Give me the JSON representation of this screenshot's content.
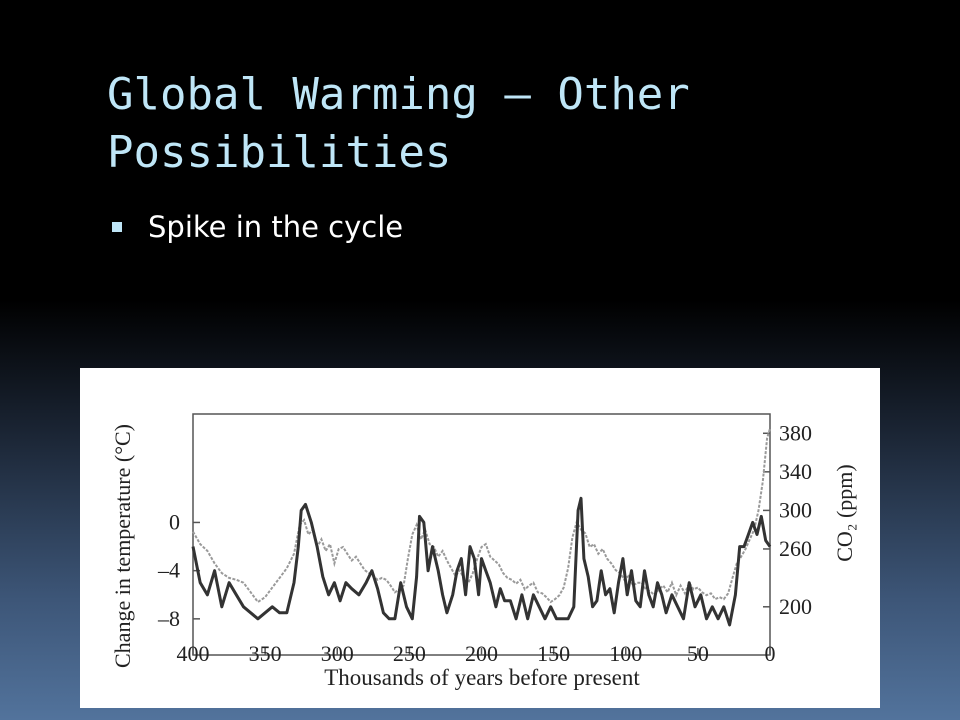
{
  "slide": {
    "title": "Global Warming – Other Possibilities",
    "bullets": [
      "Spike in the cycle"
    ],
    "accent_color": "#bfe6f7"
  },
  "chart_data": {
    "type": "line",
    "xlabel": "Thousands of years before present",
    "ylabel_left": "Change in temperature (°C)",
    "ylabel_right": "CO₂ (ppm)",
    "x_ticks": [
      "400",
      "350",
      "300",
      "250",
      "200",
      "150",
      "100",
      "50",
      "0"
    ],
    "y_left_ticks": [
      "0",
      "–4",
      "–8"
    ],
    "y_right_ticks": [
      "380",
      "340",
      "300",
      "260",
      "200"
    ],
    "xlim": [
      400,
      0
    ],
    "ylim_left": [
      -11,
      9
    ],
    "ylim_right": [
      150,
      400
    ],
    "series": [
      {
        "color": "#333333",
        "x": [
          400,
          395,
          390,
          385,
          380,
          375,
          370,
          365,
          360,
          355,
          350,
          345,
          340,
          335,
          330,
          327,
          325,
          322,
          318,
          314,
          310,
          306,
          302,
          298,
          294,
          290,
          285,
          280,
          276,
          272,
          268,
          264,
          260,
          256,
          252,
          248,
          245,
          243,
          240,
          237,
          234,
          230,
          227,
          224,
          220,
          217,
          214,
          211,
          208,
          205,
          202,
          200,
          197,
          194,
          190,
          187,
          184,
          180,
          176,
          172,
          168,
          164,
          160,
          156,
          152,
          148,
          144,
          140,
          136,
          133,
          131,
          129,
          126,
          123,
          120,
          117,
          114,
          111,
          108,
          105,
          102,
          99,
          96,
          93,
          90,
          87,
          84,
          81,
          78,
          75,
          72,
          68,
          64,
          60,
          56,
          52,
          48,
          44,
          40,
          36,
          32,
          28,
          24,
          21,
          18,
          15,
          12,
          9,
          6,
          3,
          0
        ],
        "y": [
          -2,
          -5,
          -6,
          -4,
          -7,
          -5,
          -6,
          -7,
          -7.5,
          -8,
          -7.5,
          -7,
          -7.5,
          -7.5,
          -5,
          -2,
          1,
          1.5,
          0,
          -2,
          -4.5,
          -6,
          -5,
          -6.5,
          -5,
          -5.5,
          -6,
          -5,
          -4,
          -5.5,
          -7.5,
          -8,
          -8,
          -5,
          -7,
          -8,
          -4.5,
          0.5,
          0,
          -4,
          -2,
          -4,
          -6,
          -7.5,
          -6,
          -4,
          -3,
          -6,
          -2,
          -3,
          -6,
          -3,
          -4,
          -5,
          -7,
          -5.5,
          -6.5,
          -6.5,
          -8,
          -6,
          -8,
          -6,
          -7,
          -8,
          -7,
          -8,
          -8,
          -8,
          -7,
          1,
          2,
          -3,
          -4.5,
          -7,
          -6.5,
          -4,
          -6,
          -5.5,
          -7.5,
          -5,
          -3,
          -6,
          -4,
          -6.5,
          -7,
          -4,
          -6,
          -7,
          -5,
          -6,
          -7.5,
          -6,
          -7,
          -8,
          -5,
          -7,
          -6,
          -8,
          -7,
          -8,
          -7,
          -8.5,
          -6,
          -2,
          -2,
          -1,
          0,
          -1,
          0.5,
          -1.5,
          -2
        ]
      },
      {
        "color": "#9a9a9a",
        "x": [
          400,
          395,
          390,
          385,
          380,
          375,
          370,
          365,
          360,
          355,
          350,
          345,
          340,
          335,
          330,
          326,
          323,
          320,
          317,
          314,
          311,
          308,
          305,
          302,
          299,
          296,
          293,
          290,
          287,
          284,
          281,
          278,
          275,
          272,
          269,
          266,
          263,
          260,
          257,
          254,
          251,
          248,
          245,
          242,
          239,
          236,
          233,
          230,
          227,
          224,
          221,
          218,
          215,
          212,
          209,
          206,
          203,
          200,
          197,
          194,
          191,
          188,
          185,
          182,
          179,
          176,
          173,
          170,
          167,
          164,
          161,
          158,
          155,
          152,
          149,
          146,
          143,
          140,
          137,
          134,
          131,
          128,
          125,
          122,
          119,
          116,
          113,
          110,
          107,
          104,
          101,
          98,
          95,
          92,
          89,
          86,
          83,
          80,
          77,
          74,
          71,
          68,
          65,
          62,
          59,
          56,
          53,
          50,
          47,
          44,
          41,
          38,
          35,
          32,
          29,
          26,
          23,
          20,
          17,
          14,
          11,
          8,
          5,
          2,
          0
        ],
        "y": [
          278,
          265,
          258,
          245,
          235,
          230,
          228,
          225,
          215,
          205,
          210,
          220,
          230,
          240,
          255,
          285,
          290,
          275,
          280,
          262,
          270,
          258,
          265,
          245,
          260,
          262,
          255,
          248,
          252,
          245,
          238,
          235,
          232,
          228,
          230,
          228,
          222,
          215,
          218,
          222,
          250,
          275,
          285,
          270,
          280,
          265,
          262,
          252,
          258,
          248,
          240,
          232,
          238,
          228,
          225,
          235,
          250,
          262,
          265,
          252,
          248,
          244,
          235,
          230,
          228,
          224,
          228,
          218,
          222,
          225,
          215,
          214,
          210,
          205,
          208,
          212,
          220,
          240,
          272,
          288,
          280,
          276,
          262,
          265,
          255,
          260,
          250,
          245,
          238,
          235,
          228,
          232,
          222,
          225,
          225,
          218,
          216,
          212,
          218,
          222,
          215,
          225,
          212,
          222,
          214,
          225,
          218,
          220,
          215,
          212,
          214,
          208,
          210,
          208,
          214,
          230,
          245,
          252,
          260,
          270,
          280,
          300,
          330,
          375,
          385
        ]
      }
    ]
  }
}
